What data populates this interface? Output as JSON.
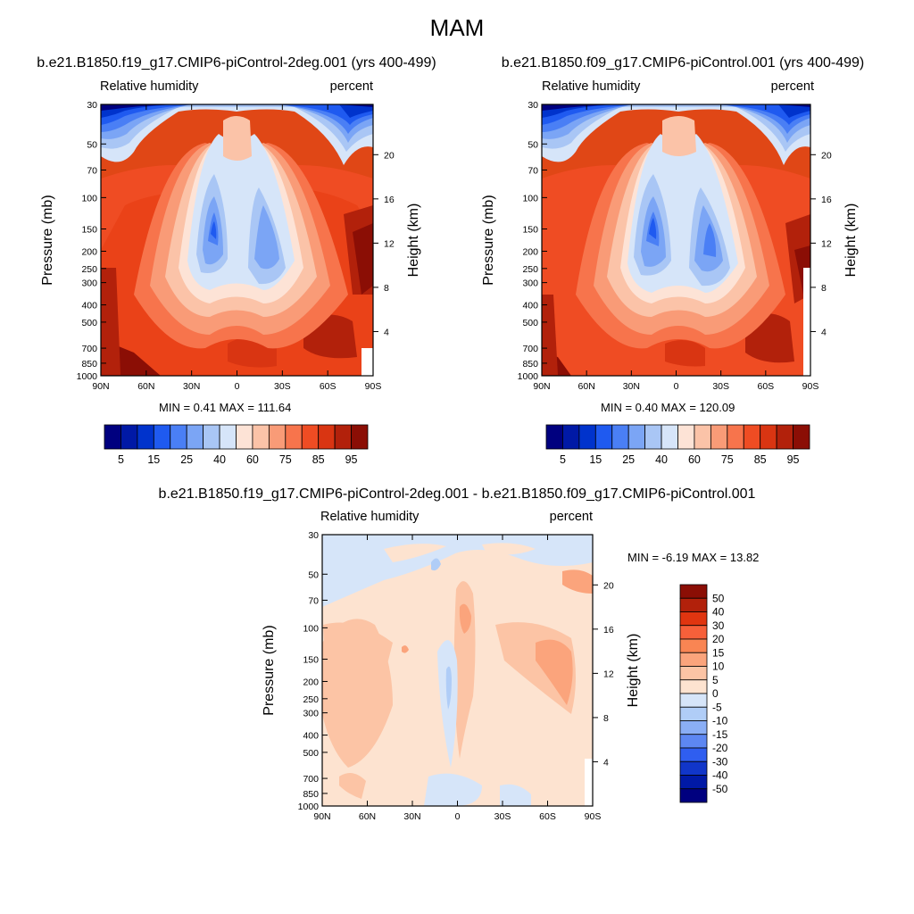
{
  "figure": {
    "title": "MAM"
  },
  "chart_data": [
    {
      "type": "heatmap",
      "title": "b.e21.B1850.f19_g17.CMIP6-piControl-2deg.001 (yrs 400-499)",
      "left_label": "Relative humidity",
      "right_label": "percent",
      "xlabel": "",
      "ylabel": "Pressure (mb)",
      "ylabel_right": "Height (km)",
      "x_ticks": [
        "90N",
        "60N",
        "30N",
        "0",
        "30S",
        "60S",
        "90S"
      ],
      "y_ticks": [
        "30",
        "50",
        "70",
        "100",
        "150",
        "200",
        "250",
        "300",
        "400",
        "500",
        "700",
        "850",
        "1000"
      ],
      "y_ticks_right": [
        "20",
        "16",
        "12",
        "8",
        "4"
      ],
      "ylim": [
        1000,
        30
      ],
      "min_text": "MIN =   0.41  MAX = 111.64",
      "min": 0.41,
      "max": 111.64,
      "colorbar": {
        "orientation": "horizontal",
        "labels": [
          "5",
          "15",
          "25",
          "40",
          "60",
          "75",
          "85",
          "95"
        ],
        "colors": [
          "#00007f",
          "#0019a6",
          "#0033cc",
          "#1f5af0",
          "#4a7ff5",
          "#7ba5f5",
          "#a9c6f5",
          "#d6e5f9",
          "#fde3d6",
          "#fbc3a8",
          "#f99b77",
          "#f7744c",
          "#ef4c23",
          "#d93512",
          "#b2210b",
          "#8b0e05"
        ]
      }
    },
    {
      "type": "heatmap",
      "title": "b.e21.B1850.f09_g17.CMIP6-piControl.001 (yrs 400-499)",
      "left_label": "Relative humidity",
      "right_label": "percent",
      "xlabel": "",
      "ylabel": "Pressure (mb)",
      "ylabel_right": "Height (km)",
      "x_ticks": [
        "90N",
        "60N",
        "30N",
        "0",
        "30S",
        "60S",
        "90S"
      ],
      "y_ticks": [
        "30",
        "50",
        "70",
        "100",
        "150",
        "200",
        "250",
        "300",
        "400",
        "500",
        "700",
        "850",
        "1000"
      ],
      "y_ticks_right": [
        "20",
        "16",
        "12",
        "8",
        "4"
      ],
      "ylim": [
        1000,
        30
      ],
      "min_text": "MIN =   0.40  MAX = 120.09",
      "min": 0.4,
      "max": 120.09,
      "colorbar": {
        "orientation": "horizontal",
        "labels": [
          "5",
          "15",
          "25",
          "40",
          "60",
          "75",
          "85",
          "95"
        ],
        "colors": [
          "#00007f",
          "#0019a6",
          "#0033cc",
          "#1f5af0",
          "#4a7ff5",
          "#7ba5f5",
          "#a9c6f5",
          "#d6e5f9",
          "#fde3d6",
          "#fbc3a8",
          "#f99b77",
          "#f7744c",
          "#ef4c23",
          "#d93512",
          "#b2210b",
          "#8b0e05"
        ]
      }
    },
    {
      "type": "heatmap",
      "title": "b.e21.B1850.f19_g17.CMIP6-piControl-2deg.001 - b.e21.B1850.f09_g17.CMIP6-piControl.001",
      "left_label": "Relative humidity",
      "right_label": "percent",
      "xlabel": "",
      "ylabel": "Pressure (mb)",
      "ylabel_right": "Height (km)",
      "x_ticks": [
        "90N",
        "60N",
        "30N",
        "0",
        "30S",
        "60S",
        "90S"
      ],
      "y_ticks": [
        "30",
        "50",
        "70",
        "100",
        "150",
        "200",
        "250",
        "300",
        "400",
        "500",
        "700",
        "850",
        "1000"
      ],
      "y_ticks_right": [
        "20",
        "16",
        "12",
        "8",
        "4"
      ],
      "ylim": [
        1000,
        30
      ],
      "min_text": "MIN =  -6.19  MAX =  13.82",
      "min": -6.19,
      "max": 13.82,
      "colorbar": {
        "orientation": "vertical",
        "labels": [
          "50",
          "40",
          "30",
          "20",
          "15",
          "10",
          "5",
          "0",
          "-5",
          "-10",
          "-15",
          "-20",
          "-30",
          "-40",
          "-50"
        ],
        "colors": [
          "#8b0e05",
          "#b2210b",
          "#e03510",
          "#f7603a",
          "#f98553",
          "#fba47c",
          "#fcc4a5",
          "#fde3d0",
          "#d6e5f9",
          "#b0cdf7",
          "#8aaef5",
          "#5d87f2",
          "#2f5ef0",
          "#1136c9",
          "#0019a6",
          "#00007f"
        ]
      }
    }
  ]
}
